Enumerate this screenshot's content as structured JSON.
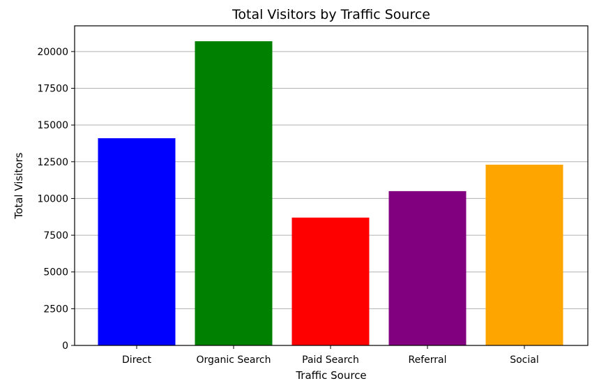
{
  "chart_data": {
    "type": "bar",
    "title": "Total Visitors by Traffic Source",
    "xlabel": "Traffic Source",
    "ylabel": "Total Visitors",
    "categories": [
      "Direct",
      "Organic Search",
      "Paid Search",
      "Referral",
      "Social"
    ],
    "values": [
      14100,
      20700,
      8700,
      10500,
      12300
    ],
    "colors": [
      "#0000ff",
      "#008000",
      "#ff0000",
      "#800080",
      "#ffa500"
    ],
    "ylim": [
      0,
      21750
    ],
    "yticks": [
      0,
      2500,
      5000,
      7500,
      10000,
      12500,
      15000,
      17500,
      20000
    ],
    "ytick_labels": [
      "0",
      "2500",
      "5000",
      "7500",
      "10000",
      "12500",
      "15000",
      "17500",
      "20000"
    ],
    "grid": "y",
    "legend": "none"
  }
}
